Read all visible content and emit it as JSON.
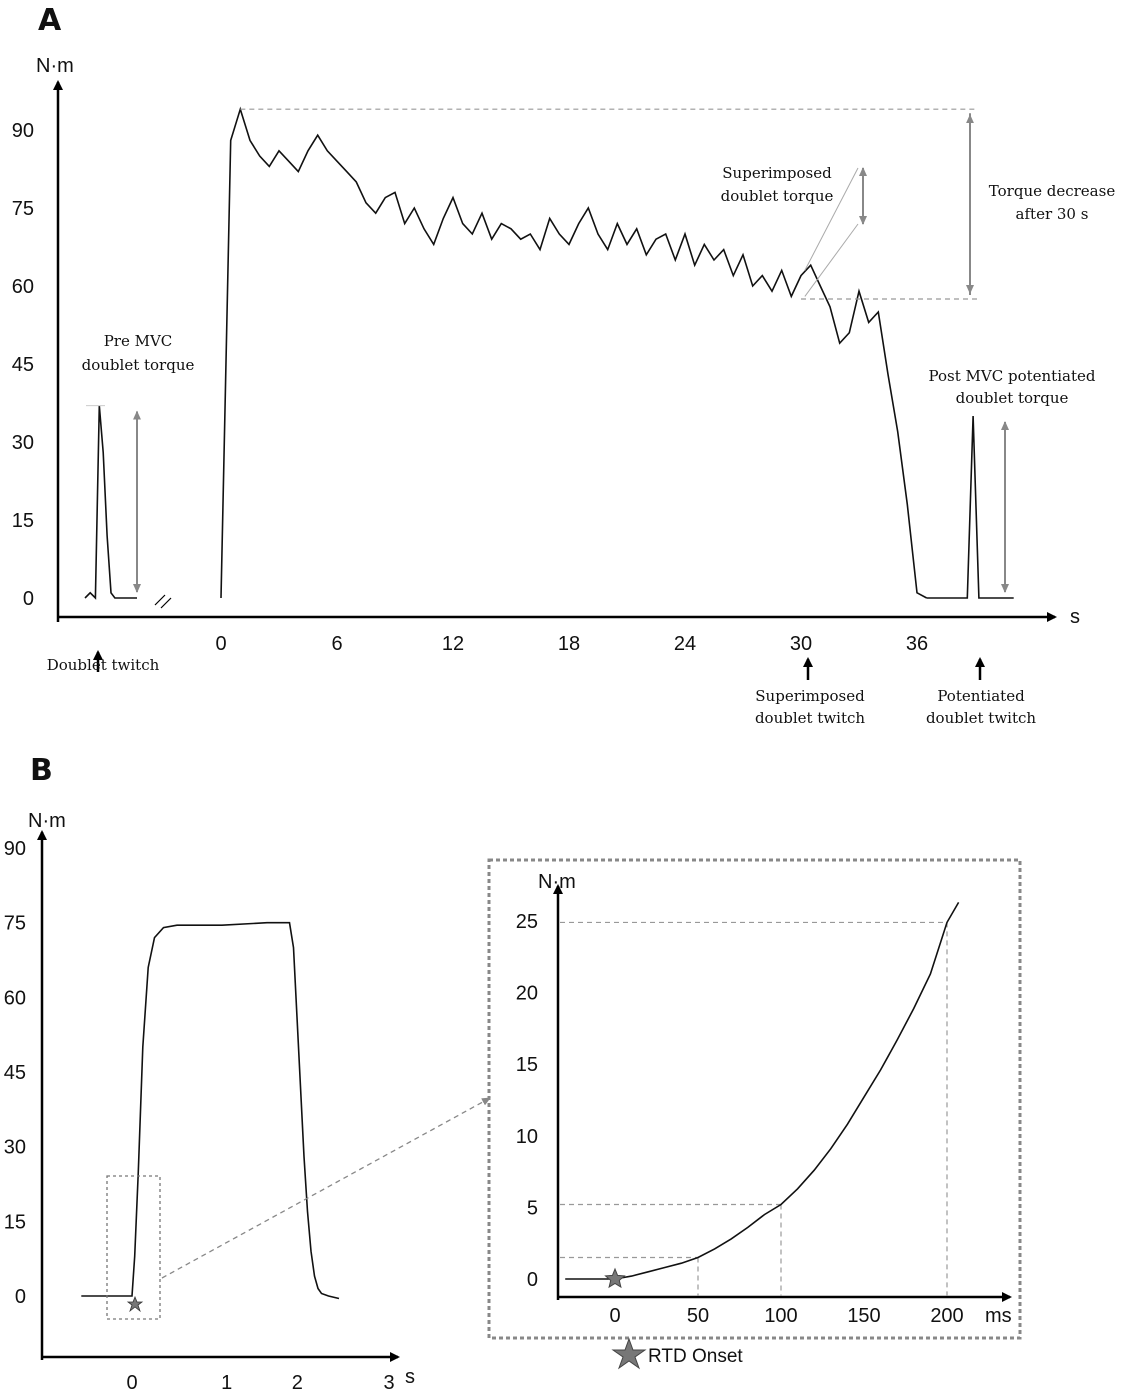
{
  "chart_data": [
    {
      "panel_label": "A",
      "type": "line",
      "ylabel": "N·m",
      "xlabel": "s",
      "y_ticks": [
        "0",
        "15",
        "30",
        "45",
        "60",
        "75",
        "90"
      ],
      "x_ticks": [
        "0",
        "6",
        "12",
        "18",
        "24",
        "30",
        "36"
      ],
      "ylim": [
        0,
        95
      ],
      "xlim": [
        -8,
        41
      ],
      "mvc_trace": {
        "x": [
          0,
          0.5,
          1,
          1.5,
          2,
          2.5,
          3,
          3.5,
          4,
          4.5,
          5,
          5.5,
          6,
          6.5,
          7,
          7.5,
          8,
          8.5,
          9,
          9.5,
          10,
          10.5,
          11,
          11.5,
          12,
          12.5,
          13,
          13.5,
          14,
          14.5,
          15,
          15.5,
          16,
          16.5,
          17,
          17.5,
          18,
          18.5,
          19,
          19.5,
          20,
          20.5,
          21,
          21.5,
          22,
          22.5,
          23,
          23.5,
          24,
          24.5,
          25,
          25.5,
          26,
          26.5,
          27,
          27.5,
          28,
          28.5,
          29,
          29.5,
          30,
          30.5,
          31,
          31.5,
          32,
          32.5,
          33,
          33.5,
          34,
          34.5,
          35,
          35.5,
          36,
          36.5
        ],
        "y": [
          0,
          88,
          94,
          88,
          85,
          83,
          86,
          84,
          82,
          86,
          89,
          86,
          84,
          82,
          80,
          76,
          74,
          77,
          78,
          72,
          75,
          71,
          68,
          73,
          77,
          72,
          70,
          74,
          69,
          72,
          71,
          69,
          70,
          67,
          73,
          70,
          68,
          72,
          75,
          70,
          67,
          72,
          68,
          71,
          66,
          69,
          70,
          65,
          70,
          64,
          68,
          65,
          67,
          62,
          66,
          60,
          62,
          59,
          63,
          58,
          62,
          64,
          60,
          56,
          49,
          51,
          59,
          53,
          55,
          43,
          32,
          18,
          1,
          0
        ]
      },
      "pre_twitch": {
        "x": [
          -7,
          -6.6,
          -6.2,
          -5.9,
          -5.6,
          -5.3,
          -5.0,
          -4.7,
          -4.2,
          -3
        ],
        "y": [
          0,
          1,
          0,
          37,
          28,
          12,
          1,
          0,
          0,
          0
        ]
      },
      "post_twitch": {
        "x": [
          36.5,
          38,
          38.6,
          38.9,
          39.2,
          39.5,
          40,
          41
        ],
        "y": [
          0,
          0,
          0,
          35,
          0,
          0,
          0,
          0
        ]
      },
      "annotations": {
        "pre_mvc": [
          "Pre MVC",
          "doublet torque"
        ],
        "superimposed_torque": [
          "Superimposed",
          "doublet torque"
        ],
        "torque_decrease": [
          "Torque decrease",
          "after 30 s"
        ],
        "post_mvc": [
          "Post MVC potentiated",
          "doublet torque"
        ],
        "doublet_twitch": "Doublet twitch",
        "superimposed_twitch": [
          "Superimposed",
          "doublet twitch"
        ],
        "potentiated_twitch": [
          "Potentiated",
          "doublet twitch"
        ]
      }
    },
    {
      "panel_label": "B",
      "type": "line",
      "ylabel": "N·m",
      "xlabel": "s",
      "y_ticks": [
        "0",
        "15",
        "30",
        "45",
        "60",
        "75",
        "90"
      ],
      "x_ticks": [
        "0",
        "1",
        "2",
        "3"
      ],
      "ylim": [
        0,
        90
      ],
      "xlim": [
        -0.7,
        3.2
      ],
      "trace": {
        "x": [
          -0.65,
          0,
          0.03,
          0.07,
          0.12,
          0.18,
          0.25,
          0.35,
          0.5,
          1.0,
          1.5,
          1.75,
          1.8,
          1.85,
          1.9,
          1.95,
          2.0,
          2.05,
          2.1,
          2.15,
          2.2,
          2.3,
          2.45
        ],
        "y": [
          0,
          0,
          8,
          25,
          50,
          66,
          72,
          74,
          74.5,
          74.5,
          75,
          75,
          70,
          56,
          42,
          28,
          17,
          9,
          4,
          1.5,
          0.5,
          0,
          -0.5
        ]
      }
    },
    {
      "panel_label": "inset",
      "type": "line",
      "ylabel": "N·m",
      "xlabel": "ms",
      "y_ticks": [
        "0",
        "5",
        "10",
        "15",
        "20",
        "25"
      ],
      "x_ticks": [
        "0",
        "50",
        "100",
        "150",
        "200"
      ],
      "ylim": [
        -1,
        26
      ],
      "xlim": [
        -35,
        230
      ],
      "trace": {
        "x": [
          -30,
          -10,
          0,
          10,
          20,
          30,
          40,
          50,
          60,
          70,
          80,
          90,
          100,
          110,
          120,
          130,
          140,
          150,
          160,
          170,
          180,
          190,
          200,
          207
        ],
        "y": [
          0,
          0,
          0,
          0.2,
          0.5,
          0.8,
          1.1,
          1.5,
          2.1,
          2.8,
          3.6,
          4.5,
          5.2,
          6.3,
          7.6,
          9.1,
          10.8,
          12.7,
          14.6,
          16.7,
          18.9,
          21.3,
          24.9,
          26.3
        ]
      },
      "reference_points": [
        {
          "x": 50,
          "y": 1.5
        },
        {
          "x": 100,
          "y": 5.2
        },
        {
          "x": 200,
          "y": 24.9
        }
      ]
    }
  ],
  "legend": {
    "rtd_onset": "RTD Onset"
  }
}
